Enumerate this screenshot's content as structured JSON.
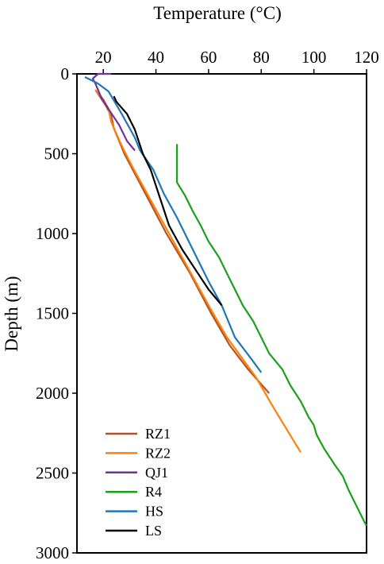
{
  "chart_data": {
    "type": "line",
    "xlabel": "Temperature (°C)",
    "ylabel": "Depth (m)",
    "xlim": [
      10,
      120
    ],
    "ylim": [
      0,
      3000
    ],
    "y_inverted": true,
    "x_axis_position": "top",
    "xticks": [
      20,
      40,
      60,
      80,
      100,
      120
    ],
    "yticks": [
      0,
      500,
      1000,
      1500,
      2000,
      2500,
      3000
    ],
    "legend_position": "bottom-left",
    "grid": false,
    "series": [
      {
        "name": "RZ1",
        "color": "#b5531f",
        "points": [
          [
            17,
            100
          ],
          [
            19,
            150
          ],
          [
            21,
            200
          ],
          [
            23,
            260
          ],
          [
            24,
            340
          ],
          [
            28,
            500
          ],
          [
            36,
            750
          ],
          [
            44,
            1000
          ],
          [
            53,
            1250
          ],
          [
            61,
            1500
          ],
          [
            68,
            1700
          ],
          [
            75,
            1850
          ],
          [
            83,
            2000
          ]
        ]
      },
      {
        "name": "RZ2",
        "color": "#ff7f0e",
        "points": [
          [
            17,
            100
          ],
          [
            20,
            160
          ],
          [
            22,
            220
          ],
          [
            23,
            300
          ],
          [
            27,
            450
          ],
          [
            31,
            580
          ],
          [
            40,
            850
          ],
          [
            50,
            1150
          ],
          [
            60,
            1450
          ],
          [
            67,
            1650
          ],
          [
            78,
            1900
          ],
          [
            85,
            2100
          ],
          [
            95,
            2370
          ]
        ]
      },
      {
        "name": "QJ1",
        "color": "#7030a0",
        "points": [
          [
            23,
            0
          ],
          [
            18,
            0
          ],
          [
            16,
            30
          ],
          [
            17,
            60
          ],
          [
            19,
            140
          ],
          [
            22,
            220
          ],
          [
            26,
            320
          ],
          [
            29,
            420
          ],
          [
            32,
            480
          ]
        ]
      },
      {
        "name": "R4",
        "color": "#1aa01a",
        "points": [
          [
            48,
            440
          ],
          [
            48,
            480
          ],
          [
            48,
            550
          ],
          [
            48,
            600
          ],
          [
            48,
            680
          ],
          [
            51,
            760
          ],
          [
            54,
            860
          ],
          [
            57,
            950
          ],
          [
            60,
            1050
          ],
          [
            64,
            1150
          ],
          [
            67,
            1250
          ],
          [
            70,
            1350
          ],
          [
            73,
            1450
          ],
          [
            77,
            1550
          ],
          [
            80,
            1650
          ],
          [
            83,
            1750
          ],
          [
            88,
            1850
          ],
          [
            91,
            1950
          ],
          [
            95,
            2050
          ],
          [
            98,
            2150
          ],
          [
            100,
            2200
          ],
          [
            101,
            2260
          ],
          [
            104,
            2350
          ],
          [
            108,
            2450
          ],
          [
            111,
            2520
          ],
          [
            113,
            2600
          ],
          [
            116,
            2700
          ],
          [
            119,
            2800
          ],
          [
            120,
            2830
          ]
        ]
      },
      {
        "name": "HS",
        "color": "#1f77b4",
        "points": [
          [
            13,
            20
          ],
          [
            18,
            60
          ],
          [
            22,
            110
          ],
          [
            27,
            250
          ],
          [
            32,
            400
          ],
          [
            34,
            480
          ],
          [
            39,
            600
          ],
          [
            43,
            750
          ],
          [
            48,
            900
          ],
          [
            54,
            1100
          ],
          [
            60,
            1300
          ],
          [
            65,
            1450
          ],
          [
            70,
            1650
          ],
          [
            76,
            1780
          ],
          [
            80,
            1870
          ]
        ]
      },
      {
        "name": "LS",
        "color": "#000000",
        "points": [
          [
            24,
            140
          ],
          [
            25,
            175
          ],
          [
            29,
            250
          ],
          [
            32,
            350
          ],
          [
            35,
            500
          ],
          [
            38,
            600
          ],
          [
            40,
            700
          ],
          [
            43,
            850
          ],
          [
            45,
            950
          ],
          [
            50,
            1100
          ],
          [
            56,
            1250
          ],
          [
            60,
            1350
          ],
          [
            65,
            1450
          ]
        ]
      }
    ]
  }
}
